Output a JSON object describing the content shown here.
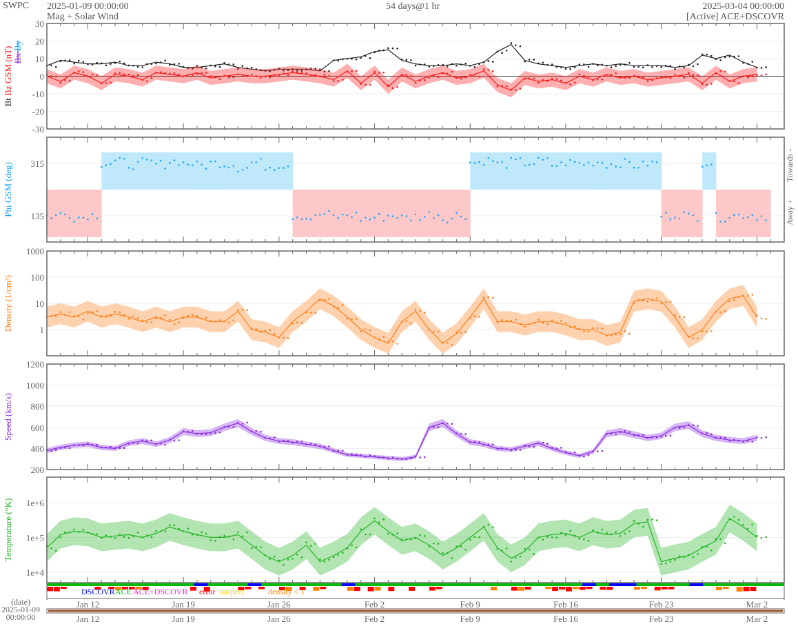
{
  "header": {
    "org": "SWPC",
    "start": "2025-01-09 00:00:00",
    "title": "Mag + Solar Wind",
    "span": "54 days@1 hr",
    "end": "2025-03-04 00:00:00",
    "source": "[Active] ACE+DSCOVR"
  },
  "colors": {
    "bt": "#222222",
    "bz": "#ff1a1a",
    "bx": "#8a2be2",
    "by": "#1aa3ff",
    "phi": "#1aa3ff",
    "density": "#ff7f1a",
    "speed": "#8a2be2",
    "temp": "#22b522",
    "towards": "#bfe9fb",
    "away": "#ffc8c8"
  },
  "timeline": {
    "date_label": "(date)",
    "date": "2025-01-09",
    "time": "00:00:00"
  },
  "source_legend": [
    {
      "label": "DSCOVR",
      "color": "#0000ff"
    },
    {
      "label": "ACE",
      "color": "#00bb00"
    },
    {
      "label": "ACE+DSCOVR",
      "color": "#ff22cc"
    },
    {
      "label": "error",
      "color": "#ff0000"
    },
    {
      "label": "suspect",
      "color": "#ffcc00"
    },
    {
      "label": "density < 1",
      "color": "#ff7f00"
    }
  ],
  "chart_data": [
    {
      "type": "line",
      "id": "mag",
      "ylabel": [
        "Bt",
        "Bz GSM (nT)"
      ],
      "ylabel2": [
        "Bx",
        "By"
      ],
      "ylim": [
        -30,
        30
      ],
      "yticks": [
        30,
        20,
        10,
        0,
        -10,
        -20,
        -30
      ],
      "log": false,
      "x_unit": "days since 2025-01-09",
      "xtick_labels": [
        "Jan 12",
        "Jan 19",
        "Jan 26",
        "Feb 2",
        "Feb 9",
        "Feb 16",
        "Feb 23",
        "Mar 2"
      ],
      "xtick_days": [
        3,
        10,
        17,
        24,
        31,
        38,
        45,
        52
      ],
      "series": [
        {
          "name": "Bt",
          "values": [
            6,
            9,
            8,
            7,
            7,
            8,
            6,
            6,
            8,
            7,
            5,
            5,
            6,
            7,
            5,
            4,
            3,
            4,
            4,
            4,
            3,
            9,
            10,
            11,
            14,
            15,
            9,
            7,
            6,
            6,
            7,
            6,
            8,
            14,
            18,
            9,
            7,
            6,
            5,
            6,
            7,
            6,
            7,
            6,
            6,
            6,
            5,
            6,
            12,
            10,
            12,
            8,
            5
          ]
        },
        {
          "name": "Bz",
          "values": [
            0,
            -3,
            2,
            0,
            -4,
            1,
            0,
            -2,
            2,
            1,
            0,
            2,
            -1,
            0,
            1,
            0,
            0,
            1,
            2,
            1,
            0,
            -2,
            3,
            -4,
            2,
            -6,
            1,
            -3,
            0,
            2,
            -1,
            0,
            3,
            -5,
            -8,
            -1,
            -3,
            -2,
            -4,
            0,
            -2,
            1,
            -1,
            0,
            -2,
            -1,
            0,
            1,
            -4,
            2,
            -3,
            0,
            1
          ]
        }
      ]
    },
    {
      "type": "scatter",
      "id": "phi",
      "ylabel": [
        "Phi GSM (deg)"
      ],
      "right_labels": [
        "Towards -",
        "Away +"
      ],
      "ylim": [
        45,
        405
      ],
      "yticks": [
        315,
        135
      ],
      "log": false,
      "series": [
        {
          "name": "Phi",
          "values": [
            135,
            140,
            130,
            138,
            315,
            320,
            310,
            318,
            312,
            322,
            315,
            308,
            316,
            312,
            300,
            318,
            305,
            310,
            135,
            128,
            140,
            132,
            138,
            125,
            130,
            136,
            128,
            133,
            140,
            127,
            138,
            318,
            325,
            312,
            320,
            316,
            322,
            310,
            318,
            314,
            320,
            312,
            316,
            308,
            315,
            135,
            140,
            132,
            318,
            130,
            136,
            138,
            134
          ]
        }
      ]
    },
    {
      "type": "line",
      "id": "density",
      "ylabel": [
        "Density (1/cm³)"
      ],
      "ylim": [
        0.1,
        1000
      ],
      "yticks": [
        1000,
        100,
        10,
        1
      ],
      "log": true,
      "series": [
        {
          "name": "Density",
          "values": [
            3,
            4,
            3,
            5,
            3,
            4,
            3,
            2,
            3,
            2,
            3,
            3,
            2,
            2,
            5,
            1,
            0.8,
            0.5,
            2,
            5,
            15,
            8,
            3,
            1,
            0.5,
            0.3,
            2,
            5,
            1,
            0.3,
            0.7,
            3,
            15,
            2,
            2,
            1.5,
            2,
            2,
            1.5,
            1,
            1,
            0.6,
            0.8,
            12,
            15,
            12,
            3,
            0.5,
            1,
            5,
            15,
            20,
            3
          ]
        }
      ]
    },
    {
      "type": "line",
      "id": "speed",
      "ylabel": [
        "Speed (km/s)"
      ],
      "ylim": [
        200,
        1200
      ],
      "yticks": [
        1200,
        1000,
        800,
        600,
        400,
        200
      ],
      "log": false,
      "series": [
        {
          "name": "Speed",
          "values": [
            380,
            410,
            430,
            440,
            410,
            400,
            450,
            470,
            440,
            480,
            560,
            540,
            550,
            600,
            640,
            560,
            500,
            470,
            460,
            440,
            420,
            380,
            340,
            330,
            320,
            310,
            300,
            320,
            600,
            640,
            540,
            460,
            440,
            400,
            390,
            420,
            450,
            400,
            360,
            330,
            370,
            540,
            560,
            530,
            500,
            520,
            600,
            620,
            540,
            500,
            480,
            470,
            500
          ]
        }
      ]
    },
    {
      "type": "line",
      "id": "temp",
      "ylabel": [
        "Temperature (°K)"
      ],
      "ylim": [
        5000,
        5400000
      ],
      "yticks": [
        1000000,
        100000,
        10000
      ],
      "ytick_labels": [
        "1e+6",
        "1e+5",
        "1e+4"
      ],
      "log": true,
      "series": [
        {
          "name": "Temperature",
          "values": [
            50000,
            120000,
            150000,
            140000,
            100000,
            110000,
            120000,
            100000,
            130000,
            200000,
            150000,
            120000,
            100000,
            100000,
            120000,
            60000,
            30000,
            20000,
            30000,
            60000,
            20000,
            30000,
            50000,
            150000,
            300000,
            150000,
            80000,
            100000,
            60000,
            30000,
            50000,
            100000,
            200000,
            50000,
            25000,
            40000,
            100000,
            120000,
            130000,
            100000,
            150000,
            120000,
            130000,
            250000,
            280000,
            20000,
            25000,
            30000,
            50000,
            80000,
            350000,
            200000,
            100000
          ]
        }
      ]
    }
  ]
}
